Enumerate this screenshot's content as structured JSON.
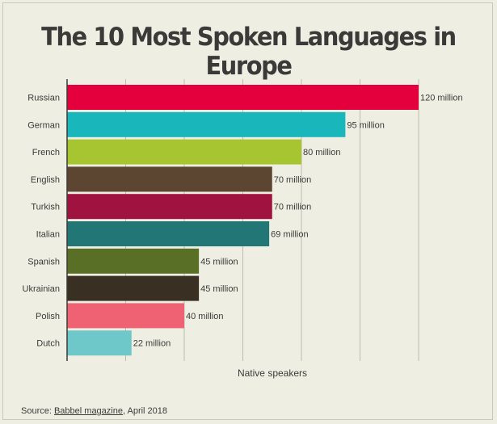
{
  "chart_data": {
    "type": "bar",
    "orientation": "horizontal",
    "title": "The 10 Most Spoken Languages in Europe",
    "xlabel": "Native speakers",
    "ylabel": "",
    "xlim": [
      0,
      125
    ],
    "grid": true,
    "categories": [
      "Russian",
      "German",
      "French",
      "English",
      "Turkish",
      "Italian",
      "Spanish",
      "Ukrainian",
      "Polish",
      "Dutch"
    ],
    "values": [
      120,
      95,
      80,
      70,
      70,
      69,
      45,
      45,
      40,
      22
    ],
    "data_labels": [
      "120 million",
      "95 million",
      "80 million",
      "70 million",
      "70 million",
      "69 million",
      "45 million",
      "45 million",
      "40 million",
      "22 million"
    ],
    "colors": [
      "#e4003d",
      "#19b6bc",
      "#a6c531",
      "#5c4632",
      "#a0123f",
      "#227676",
      "#5a6f26",
      "#3a2f23",
      "#ee6274",
      "#6ec8c9"
    ]
  },
  "source": {
    "prefix": "Source: ",
    "link": "Babbel magazine",
    "suffix": ", April 2018"
  }
}
